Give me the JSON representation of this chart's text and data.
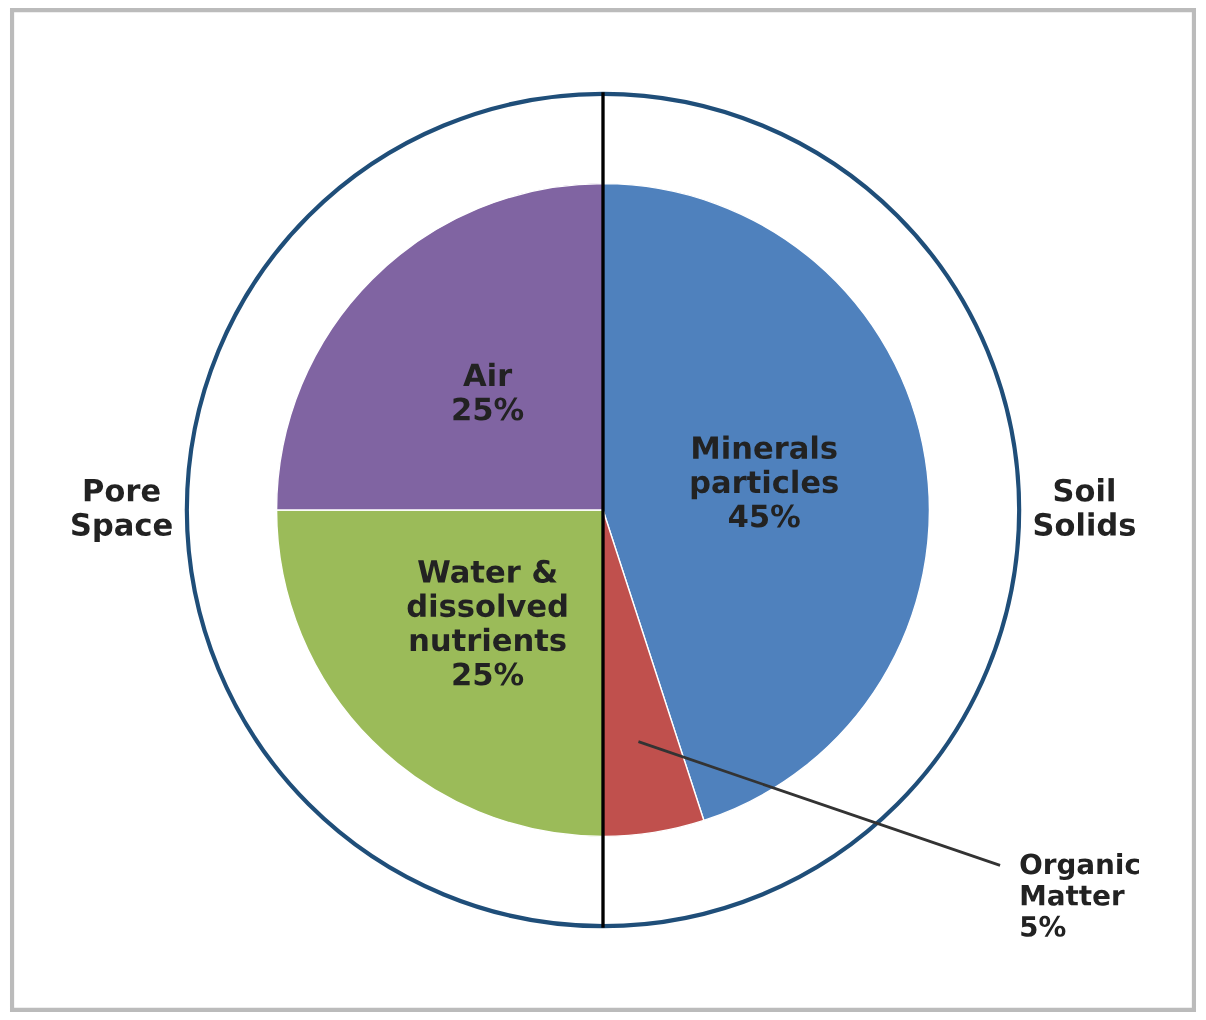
{
  "chart_data": {
    "type": "pie",
    "categories": [
      "Minerals\nparticles",
      "Organic\nMatter",
      "Water &\ndissolved\nnutrients",
      "Air"
    ],
    "values": [
      45,
      5,
      25,
      25
    ],
    "value_labels": [
      "45%",
      "5%",
      "25%",
      "25%"
    ],
    "colors": [
      "#4f81bd",
      "#c0504d",
      "#9bbb59",
      "#8064a2"
    ],
    "annotations": [
      "Pore\nSpace",
      "Soil\nSolids"
    ],
    "legend": false
  }
}
